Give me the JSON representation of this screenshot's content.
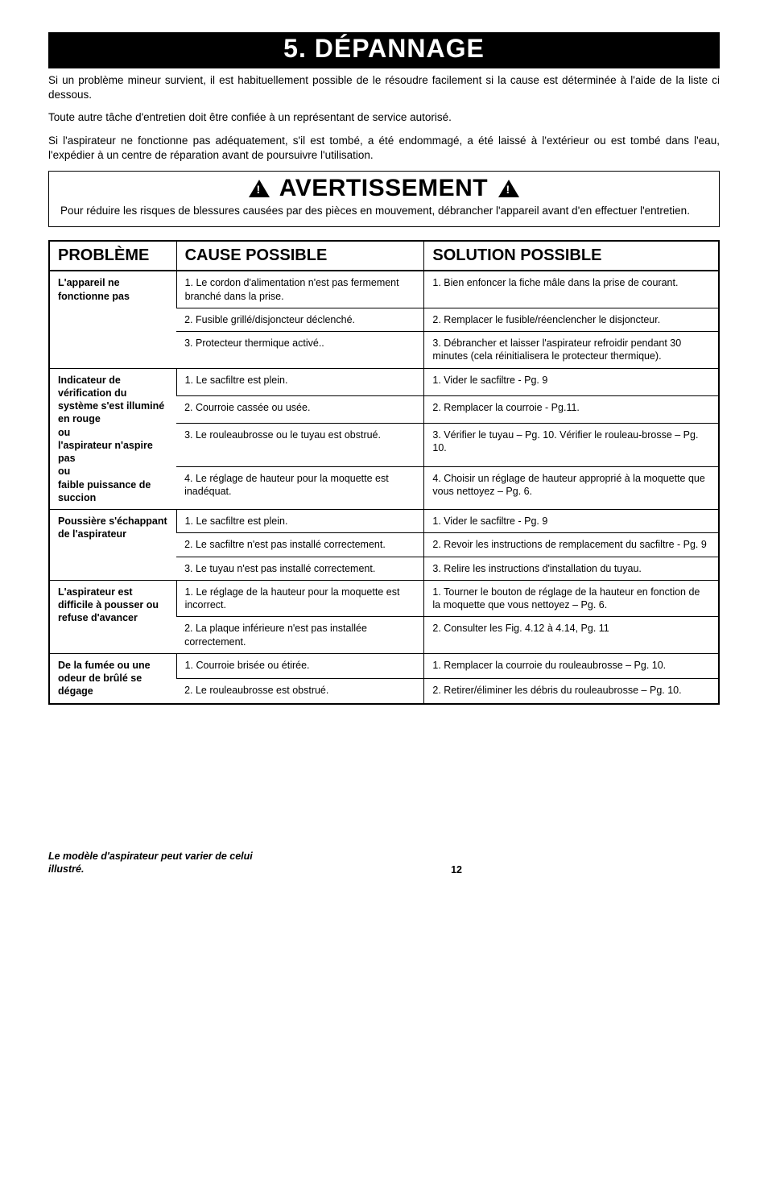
{
  "banner": "5. DÉPANNAGE",
  "intro": {
    "p1": "Si un problème mineur survient, il est habituellement possible de le résoudre facilement si la cause est déterminée à l'aide de la liste ci dessous.",
    "p2": "Toute autre tâche d'entretien doit être confiée à un représentant de service autorisé.",
    "p3": "Si l'aspirateur ne fonctionne pas adéquatement, s'il est tombé, a été endommagé, a été laissé à l'extérieur ou est tombé dans l'eau, l'expédier à un centre de réparation avant de poursuivre l'utilisation."
  },
  "warning": {
    "title": "AVERTISSEMENT",
    "text": "Pour réduire les risques de blessures causées par des pièces en mouvement, débrancher l'appareil avant d'en effectuer l'entretien."
  },
  "table": {
    "headers": {
      "problem": "PROBLÈME",
      "cause": "CAUSE POSSIBLE",
      "solution": "SOLUTION POSSIBLE"
    },
    "groups": [
      {
        "problem": "L'appareil ne fonctionne pas",
        "problem_rowspan": 3,
        "rows": [
          {
            "cause": "1. Le cordon d'alimentation n'est pas fermement branché dans la prise.",
            "solution": "1. Bien enfoncer la fiche mâle dans la prise de courant."
          },
          {
            "cause": "2. Fusible grillé/disjoncteur déclenché.",
            "solution": "2. Remplacer le fusible/réenclencher le disjoncteur."
          },
          {
            "cause": "3. Protecteur thermique activé..",
            "solution": "3. Débrancher et laisser l'aspirateur refroidir pendant 30 minutes (cela réinitialisera le protecteur thermique)."
          }
        ]
      },
      {
        "problem": "Indicateur de vérification du système s'est illuminé en rouge\nou\nl'aspirateur n'aspire pas\nou\nfaible puissance de succion",
        "problem_rowspan": 4,
        "rows": [
          {
            "cause": "1. Le sacfiltre est plein.",
            "solution": "1. Vider le sacfiltre - Pg. 9"
          },
          {
            "cause": "2. Courroie cassée ou usée.",
            "solution": "2. Remplacer la courroie - Pg.11."
          },
          {
            "cause": "3. Le rouleaubrosse ou le tuyau est obstrué.",
            "solution": "3. Vérifier le tuyau – Pg. 10. Vérifier le rouleau-brosse – Pg. 10."
          },
          {
            "cause": "4. Le réglage de hauteur pour la moquette est inadéquat.",
            "solution": "4. Choisir un réglage de hauteur approprié à la moquette que vous nettoyez – Pg. 6."
          }
        ]
      },
      {
        "problem": "Poussière s'échappant de l'aspirateur",
        "problem_rowspan": 3,
        "rows": [
          {
            "cause": "1. Le sacfiltre est plein.",
            "solution": "1. Vider le sacfiltre - Pg. 9"
          },
          {
            "cause": "2. Le sacfiltre n'est pas installé correctement.",
            "solution": "2. Revoir les instructions de remplacement du sacfiltre - Pg. 9"
          },
          {
            "cause": "3. Le tuyau n'est pas installé correctement.",
            "solution": "3. Relire les instructions d'installation du tuyau."
          }
        ]
      },
      {
        "problem": "L'aspirateur est difficile à pousser ou refuse d'avancer",
        "problem_rowspan": 2,
        "rows": [
          {
            "cause": "1. Le réglage de la hauteur pour la moquette est incorrect.",
            "solution": "1. Tourner le bouton de réglage de la hauteur en fonction de la moquette que vous nettoyez – Pg. 6."
          },
          {
            "cause": "2. La plaque inférieure n'est pas installée correctement.",
            "solution": "2. Consulter les Fig. 4.12 à 4.14, Pg. 11"
          }
        ]
      },
      {
        "problem": "De la fumée ou une odeur de brûlé se dégage",
        "problem_rowspan": 2,
        "rows": [
          {
            "cause": "1. Courroie brisée ou étirée.",
            "solution": "1. Remplacer la courroie du rouleaubrosse – Pg. 10."
          },
          {
            "cause": "2. Le rouleaubrosse est obstrué.",
            "solution": "2. Retirer/éliminer les débris du rouleaubrosse – Pg. 10."
          }
        ]
      }
    ]
  },
  "footer": {
    "note": "Le modèle d'aspirateur peut varier de celui illustré.",
    "page": "12"
  }
}
